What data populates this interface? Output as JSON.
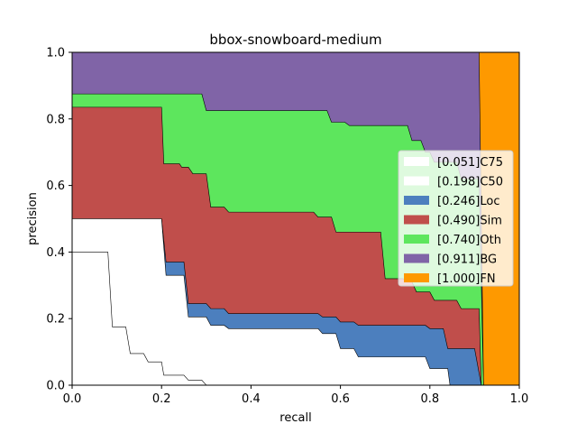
{
  "chart_data": {
    "type": "area",
    "title": "bbox-snowboard-medium",
    "xlabel": "recall",
    "ylabel": "precision",
    "xlim": [
      0.0,
      1.0
    ],
    "ylim": [
      0.0,
      1.0
    ],
    "xticks": [
      "0.0",
      "0.2",
      "0.4",
      "0.6",
      "0.8",
      "1.0"
    ],
    "yticks": [
      "0.0",
      "0.2",
      "0.4",
      "0.6",
      "0.8",
      "1.0"
    ],
    "grid": false,
    "legend_position": "center-right",
    "series": [
      {
        "name": "[0.051]C75",
        "color": "#ffffff",
        "x": [
          0.0,
          0.08,
          0.09,
          0.12,
          0.13,
          0.16,
          0.17,
          0.2,
          0.205,
          0.25,
          0.26,
          0.29,
          0.3,
          1.0
        ],
        "y": [
          0.4,
          0.4,
          0.175,
          0.175,
          0.095,
          0.095,
          0.07,
          0.07,
          0.03,
          0.03,
          0.015,
          0.015,
          0.0,
          0.0
        ]
      },
      {
        "name": "[0.198]C50",
        "color": "#ffffff",
        "x": [
          0.0,
          0.2,
          0.21,
          0.25,
          0.26,
          0.3,
          0.31,
          0.34,
          0.35,
          0.55,
          0.56,
          0.59,
          0.6,
          0.63,
          0.64,
          0.79,
          0.8,
          0.84,
          0.845,
          1.0
        ],
        "y": [
          0.5,
          0.5,
          0.33,
          0.33,
          0.205,
          0.205,
          0.18,
          0.18,
          0.17,
          0.17,
          0.155,
          0.155,
          0.11,
          0.11,
          0.085,
          0.085,
          0.05,
          0.05,
          0.0,
          0.0
        ]
      },
      {
        "name": "[0.246]Loc",
        "color": "#4c7fbe",
        "x": [
          0.0,
          0.2,
          0.21,
          0.25,
          0.26,
          0.3,
          0.31,
          0.34,
          0.35,
          0.55,
          0.56,
          0.59,
          0.6,
          0.63,
          0.64,
          0.79,
          0.8,
          0.83,
          0.84,
          0.9,
          0.915,
          1.0
        ],
        "y": [
          0.5,
          0.5,
          0.37,
          0.37,
          0.245,
          0.245,
          0.23,
          0.23,
          0.215,
          0.215,
          0.205,
          0.205,
          0.19,
          0.19,
          0.18,
          0.18,
          0.17,
          0.17,
          0.11,
          0.11,
          0.0,
          0.0
        ]
      },
      {
        "name": "[0.490]Sim",
        "color": "#c04e4b",
        "x": [
          0.0,
          0.2,
          0.205,
          0.24,
          0.245,
          0.26,
          0.27,
          0.3,
          0.31,
          0.34,
          0.35,
          0.54,
          0.55,
          0.58,
          0.59,
          0.69,
          0.7,
          0.74,
          0.75,
          0.76,
          0.77,
          0.8,
          0.81,
          0.86,
          0.87,
          0.91,
          0.915,
          1.0
        ],
        "y": [
          0.835,
          0.835,
          0.665,
          0.665,
          0.655,
          0.655,
          0.635,
          0.635,
          0.535,
          0.535,
          0.52,
          0.52,
          0.505,
          0.505,
          0.46,
          0.46,
          0.32,
          0.32,
          0.31,
          0.31,
          0.28,
          0.28,
          0.255,
          0.255,
          0.23,
          0.23,
          0.0,
          0.0
        ]
      },
      {
        "name": "[0.740]Oth",
        "color": "#5de65d",
        "x": [
          0.0,
          0.29,
          0.3,
          0.57,
          0.58,
          0.61,
          0.62,
          0.75,
          0.76,
          0.78,
          0.79,
          0.8,
          0.81,
          0.86,
          0.87,
          0.91,
          0.92,
          1.0
        ],
        "y": [
          0.875,
          0.875,
          0.825,
          0.825,
          0.79,
          0.79,
          0.78,
          0.78,
          0.735,
          0.735,
          0.7,
          0.7,
          0.67,
          0.67,
          0.62,
          0.62,
          0.0,
          0.0
        ]
      },
      {
        "name": "[0.911]BG",
        "color": "#8064a7",
        "x": [
          0.0,
          0.91,
          0.92,
          1.0
        ],
        "y": [
          1.0,
          1.0,
          0.0,
          0.0
        ]
      },
      {
        "name": "[1.000]FN",
        "color": "#fe9900",
        "x": [
          0.0,
          1.0
        ],
        "y": [
          1.0,
          1.0
        ]
      }
    ]
  }
}
